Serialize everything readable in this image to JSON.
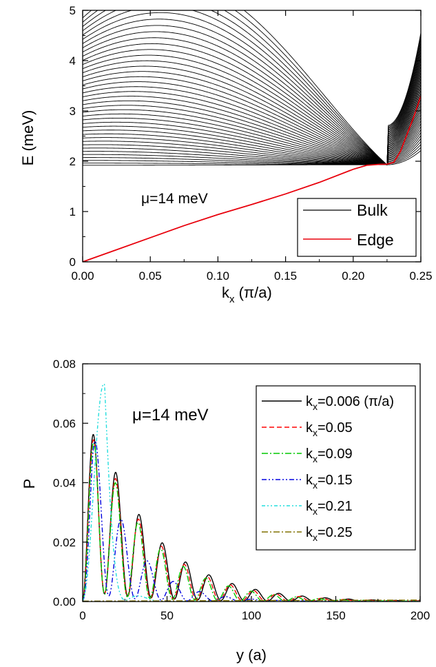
{
  "chart_data": [
    {
      "type": "line",
      "panel": "top",
      "xlabel_main": "k",
      "xlabel_sub": "x",
      "xlabel_unit": " (π/a)",
      "ylabel": "E (meV)",
      "xlim": [
        0,
        0.25
      ],
      "ylim": [
        0,
        5
      ],
      "xticks": [
        "0.00",
        "0.05",
        "0.10",
        "0.15",
        "0.20",
        "0.25"
      ],
      "yticks": [
        "0",
        "1",
        "2",
        "3",
        "4",
        "5"
      ],
      "annotation": "μ=14 meV",
      "legend_position": "bottom-right",
      "legend": [
        {
          "label": "Bulk",
          "color": "#000000"
        },
        {
          "label": "Edge",
          "color": "#e8000b"
        }
      ],
      "series": [
        {
          "name": "Bulk",
          "color": "#000000",
          "description_values": {
            "band_count": 40,
            "k0_energy_first": 1.92,
            "k0_energy_last": 4.85,
            "band_minimum_k": 0.225,
            "band_minimum_E": 1.93
          }
        },
        {
          "name": "Edge",
          "color": "#e8000b",
          "x": [
            0,
            0.025,
            0.05,
            0.075,
            0.1,
            0.125,
            0.15,
            0.175,
            0.2,
            0.21,
            0.22,
            0.225,
            0.23,
            0.235,
            0.24,
            0.245,
            0.25
          ],
          "y": [
            0,
            0.24,
            0.48,
            0.72,
            0.94,
            1.14,
            1.35,
            1.58,
            1.84,
            1.92,
            1.94,
            1.94,
            1.98,
            2.2,
            2.55,
            2.9,
            3.3
          ]
        }
      ]
    },
    {
      "type": "line",
      "panel": "bottom",
      "xlabel": "y (a)",
      "ylabel": "P",
      "xlim": [
        0,
        200
      ],
      "ylim": [
        0,
        0.08
      ],
      "xticks": [
        "0",
        "50",
        "100",
        "150",
        "200"
      ],
      "yticks": [
        "0.00",
        "0.02",
        "0.04",
        "0.06",
        "0.08"
      ],
      "annotation": "μ=14 meV",
      "legend_position": "top-right",
      "series": [
        {
          "name": "0.006 (π/a)",
          "color": "#000000",
          "dash": "",
          "lambda": 13.8,
          "phase": 0.2,
          "peak_y": 8.5,
          "peak_P": 0.057,
          "decay": 35
        },
        {
          "name": "0.05",
          "color": "#ff0000",
          "dash": "7,4",
          "lambda": 13.6,
          "phase": 0.15,
          "peak_y": 8.3,
          "peak_P": 0.055,
          "decay": 34
        },
        {
          "name": "0.09",
          "color": "#00c800",
          "dash": "9,3,2,3",
          "lambda": 13.4,
          "phase": 0.1,
          "peak_y": 8.0,
          "peak_P": 0.054,
          "decay": 33
        },
        {
          "name": "0.15",
          "color": "#0000e0",
          "dash": "7,3,2,3,2,3",
          "lambda": 15.5,
          "phase": 0.0,
          "peak_y": 6.0,
          "peak_P": 0.057,
          "decay": 22
        },
        {
          "name": "0.21",
          "color": "#22dddd",
          "dash": "5,3,2,3,2,3",
          "lambda": 25.0,
          "phase": 0.0,
          "peak_y": 13.0,
          "peak_P": 0.07,
          "decay": 6
        },
        {
          "name": "0.25",
          "color": "#807000",
          "dash": "9,3,2,3",
          "lambda": 14.0,
          "phase": 0.0,
          "peak_y": 10.0,
          "peak_P": 0.0005,
          "decay": 1000
        }
      ],
      "legend_prefix_main": "k",
      "legend_prefix_sub": "x",
      "legend_prefix_eq": "="
    }
  ]
}
